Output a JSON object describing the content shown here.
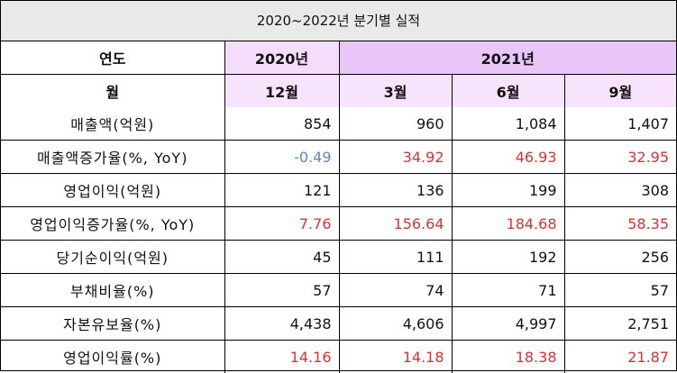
{
  "title": "2020~2022년 분기별 실적",
  "header": {
    "year_label": "연도",
    "year_2020": "2020년",
    "year_2021": "2021년",
    "month_label": "월",
    "months": [
      "12월",
      "3월",
      "6월",
      "9월"
    ]
  },
  "colors": {
    "negative": "#5b8cc4",
    "positive": "#e03030",
    "year2020_bg": "#f3ddfb",
    "year2021_bg": "#e9c6f8"
  },
  "rows": [
    {
      "label": "매출액(억원)",
      "values": [
        "854",
        "960",
        "1,084",
        "1,407"
      ],
      "style": "plain"
    },
    {
      "label": "매출액증가율(%, YoY)",
      "values": [
        "-0.49",
        "34.92",
        "46.93",
        "32.95"
      ],
      "style": "growth"
    },
    {
      "label": "영업이익(억원)",
      "values": [
        "121",
        "136",
        "199",
        "308"
      ],
      "style": "plain"
    },
    {
      "label": "영업이익증가율(%, YoY)",
      "values": [
        "7.76",
        "156.64",
        "184.68",
        "58.35"
      ],
      "style": "growth"
    },
    {
      "label": "당기순이익(억원)",
      "values": [
        "45",
        "111",
        "192",
        "256"
      ],
      "style": "plain"
    },
    {
      "label": "부채비율(%)",
      "values": [
        "57",
        "74",
        "71",
        "57"
      ],
      "style": "plain"
    },
    {
      "label": "자본유보율(%)",
      "values": [
        "4,438",
        "4,606",
        "4,997",
        "2,751"
      ],
      "style": "plain"
    },
    {
      "label": "영업이익률(%)",
      "values": [
        "14.16",
        "14.18",
        "18.38",
        "21.87"
      ],
      "style": "growth"
    }
  ]
}
